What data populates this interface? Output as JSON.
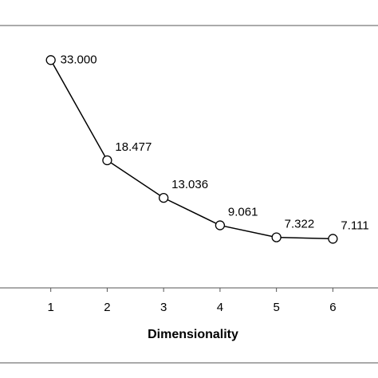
{
  "chart_data": {
    "type": "line",
    "x": [
      1,
      2,
      3,
      4,
      5,
      6
    ],
    "values": [
      33.0,
      18.477,
      13.036,
      9.061,
      7.322,
      7.111
    ],
    "value_labels": [
      "33.000",
      "18.477",
      "13.036",
      "9.061",
      "7.322",
      "7.111"
    ],
    "x_label": "Dimensionality",
    "xlim": [
      0.1,
      6.8
    ],
    "xticks": [
      1,
      2,
      3,
      4,
      5,
      6
    ],
    "ylim": [
      0,
      38
    ],
    "color": "#000000"
  }
}
